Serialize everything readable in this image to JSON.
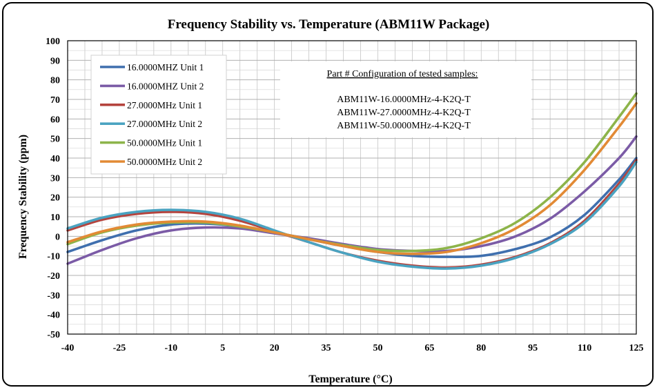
{
  "chart_data": {
    "type": "line",
    "title": "Frequency Stability  vs. Temperature (ABM11W Package)",
    "xlabel": "Temperature  (°C)",
    "ylabel": "Frequency  Stability  (ppm)",
    "xlim": [
      -40,
      125
    ],
    "ylim": [
      -50,
      100
    ],
    "xticks": [
      -40,
      -25,
      -10,
      5,
      20,
      35,
      50,
      65,
      80,
      95,
      110,
      125
    ],
    "yticks": [
      -50,
      -40,
      -30,
      -20,
      -10,
      0,
      10,
      20,
      30,
      40,
      50,
      60,
      70,
      80,
      90,
      100
    ],
    "grid": true,
    "legend_position": "top-left",
    "x": [
      -40,
      -30,
      -20,
      -10,
      0,
      10,
      20,
      30,
      40,
      50,
      60,
      70,
      80,
      90,
      100,
      110,
      120,
      125
    ],
    "series": [
      {
        "name": "16.0000MHZ Unit 1",
        "color": "#3F6FAE",
        "values": [
          -8,
          -2,
          3,
          6,
          6.5,
          5,
          2,
          -1.5,
          -5,
          -8,
          -10,
          -10.5,
          -10,
          -6.5,
          -0.5,
          11,
          29,
          40
        ]
      },
      {
        "name": "16.0000MHZ Unit 2",
        "color": "#7B5BA6",
        "values": [
          -14,
          -7,
          -1,
          3,
          4.5,
          4,
          1.5,
          -1,
          -4,
          -6.5,
          -7.5,
          -7.5,
          -5,
          0,
          9,
          23,
          40,
          51
        ]
      },
      {
        "name": "27.0000MHz Unit 1",
        "color": "#B5443E",
        "values": [
          3,
          8.5,
          11.5,
          12.5,
          11.5,
          8,
          2.5,
          -3,
          -8.5,
          -12.5,
          -15,
          -16,
          -14.5,
          -10.5,
          -3.5,
          8,
          27,
          39
        ]
      },
      {
        "name": "27.0000MHz Unit 2",
        "color": "#4AA3C1",
        "values": [
          4,
          9.5,
          12.5,
          13.5,
          12.5,
          9,
          3,
          -3,
          -8.5,
          -13,
          -15.5,
          -16.5,
          -15,
          -11,
          -4,
          7,
          25.5,
          38
        ]
      },
      {
        "name": "50.0000MHz Unit 1",
        "color": "#8DB44A",
        "values": [
          -4,
          2,
          5.5,
          7,
          7,
          5,
          2,
          -1.5,
          -4.5,
          -7,
          -7.5,
          -6,
          -1,
          7,
          20,
          38,
          61,
          73
        ]
      },
      {
        "name": "50.0000MHz Unit 2",
        "color": "#E28A35",
        "values": [
          -3,
          2.5,
          6,
          7.5,
          7.5,
          5.5,
          2,
          -1.5,
          -5,
          -8,
          -9,
          -8,
          -3.5,
          4,
          16,
          34,
          56,
          68
        ]
      }
    ],
    "annotation": {
      "heading": "Part # Configuration of tested samples:",
      "lines": [
        "ABM11W-16.0000MHz-4-K2Q-T",
        "ABM11W-27.0000MHz-4-K2Q-T",
        "ABM11W-50.0000MHz-4-K2Q-T"
      ]
    }
  }
}
